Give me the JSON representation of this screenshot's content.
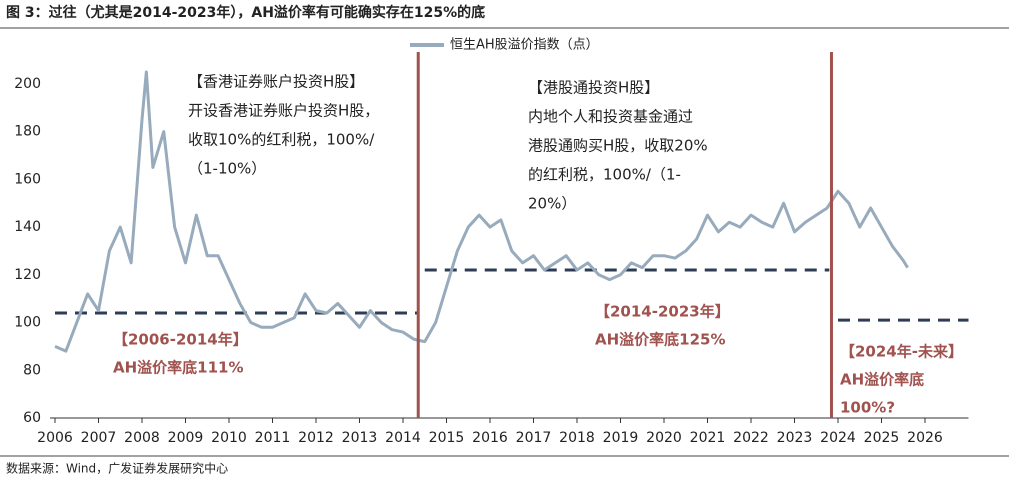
{
  "chart_data": {
    "type": "line",
    "title": "图 3：过往（尤其是2014-2023年），AH溢价率有可能确实存在125%的底",
    "source": "数据来源：Wind，广发证券发展研究中心",
    "x": [
      2006.0,
      2006.25,
      2006.5,
      2006.75,
      2007.0,
      2007.25,
      2007.5,
      2007.75,
      2008.0,
      2008.1,
      2008.25,
      2008.5,
      2008.75,
      2009.0,
      2009.25,
      2009.5,
      2009.75,
      2010.0,
      2010.25,
      2010.5,
      2010.75,
      2011.0,
      2011.25,
      2011.5,
      2011.75,
      2012.0,
      2012.25,
      2012.5,
      2012.75,
      2013.0,
      2013.25,
      2013.5,
      2013.75,
      2014.0,
      2014.25,
      2014.5,
      2014.75,
      2015.0,
      2015.25,
      2015.5,
      2015.75,
      2016.0,
      2016.25,
      2016.5,
      2016.75,
      2017.0,
      2017.25,
      2017.5,
      2017.75,
      2018.0,
      2018.25,
      2018.5,
      2018.75,
      2019.0,
      2019.25,
      2019.5,
      2019.75,
      2020.0,
      2020.25,
      2020.5,
      2020.75,
      2021.0,
      2021.25,
      2021.5,
      2021.75,
      2022.0,
      2022.25,
      2022.5,
      2022.75,
      2023.0,
      2023.25,
      2023.5,
      2023.75,
      2024.0,
      2024.25,
      2024.5,
      2024.75,
      2025.0,
      2025.25,
      2025.5,
      2025.6
    ],
    "series": [
      {
        "name": "恒生AH股溢价指数（点）",
        "color": "#97abbd",
        "values": [
          90,
          88,
          100,
          112,
          105,
          130,
          140,
          125,
          185,
          205,
          165,
          180,
          140,
          125,
          145,
          128,
          128,
          118,
          108,
          100,
          98,
          98,
          100,
          102,
          112,
          105,
          104,
          108,
          103,
          98,
          105,
          100,
          97,
          96,
          93,
          92,
          100,
          115,
          130,
          140,
          145,
          140,
          143,
          130,
          125,
          128,
          122,
          125,
          128,
          122,
          125,
          120,
          118,
          120,
          125,
          123,
          128,
          128,
          127,
          130,
          135,
          145,
          138,
          142,
          140,
          145,
          142,
          140,
          150,
          138,
          142,
          145,
          148,
          155,
          150,
          140,
          148,
          140,
          132,
          126,
          123
        ]
      }
    ],
    "xlim": [
      2006,
      2027
    ],
    "xticks": [
      2006,
      2007,
      2008,
      2009,
      2010,
      2011,
      2012,
      2013,
      2014,
      2015,
      2016,
      2017,
      2018,
      2019,
      2020,
      2021,
      2022,
      2023,
      2024,
      2025,
      2026
    ],
    "ylim": [
      60,
      210
    ],
    "yticks": [
      60,
      80,
      100,
      120,
      140,
      160,
      180,
      200
    ],
    "vlines": [
      2014.35,
      2023.85
    ],
    "vline_color": "#a0524e",
    "hlines": [
      {
        "x": [
          2006,
          2014.35
        ],
        "y": 104
      },
      {
        "x": [
          2014.5,
          2023.8
        ],
        "y": 122
      },
      {
        "x": [
          2024,
          2027
        ],
        "y": 101
      }
    ],
    "hline_color": "#2e3d55",
    "notes_black": [
      [
        "【香港证券账户投资H股】",
        "开设香港证券账户投资H股，",
        "收取10%的红利税，100%/",
        "（1-10%）"
      ],
      [
        "【港股通投资H股】",
        "内地个人和投资基金通过",
        "港股通购买H股，收取20%",
        "的红利税，100%/（1-",
        "20%）"
      ]
    ],
    "notes_red": [
      [
        "【2006-2014年】",
        "AH溢价率底111%"
      ],
      [
        "【2014-2023年】",
        "AH溢价率底125%"
      ],
      [
        "【2024年-未来】",
        "AH溢价率底",
        "100%?"
      ]
    ]
  }
}
